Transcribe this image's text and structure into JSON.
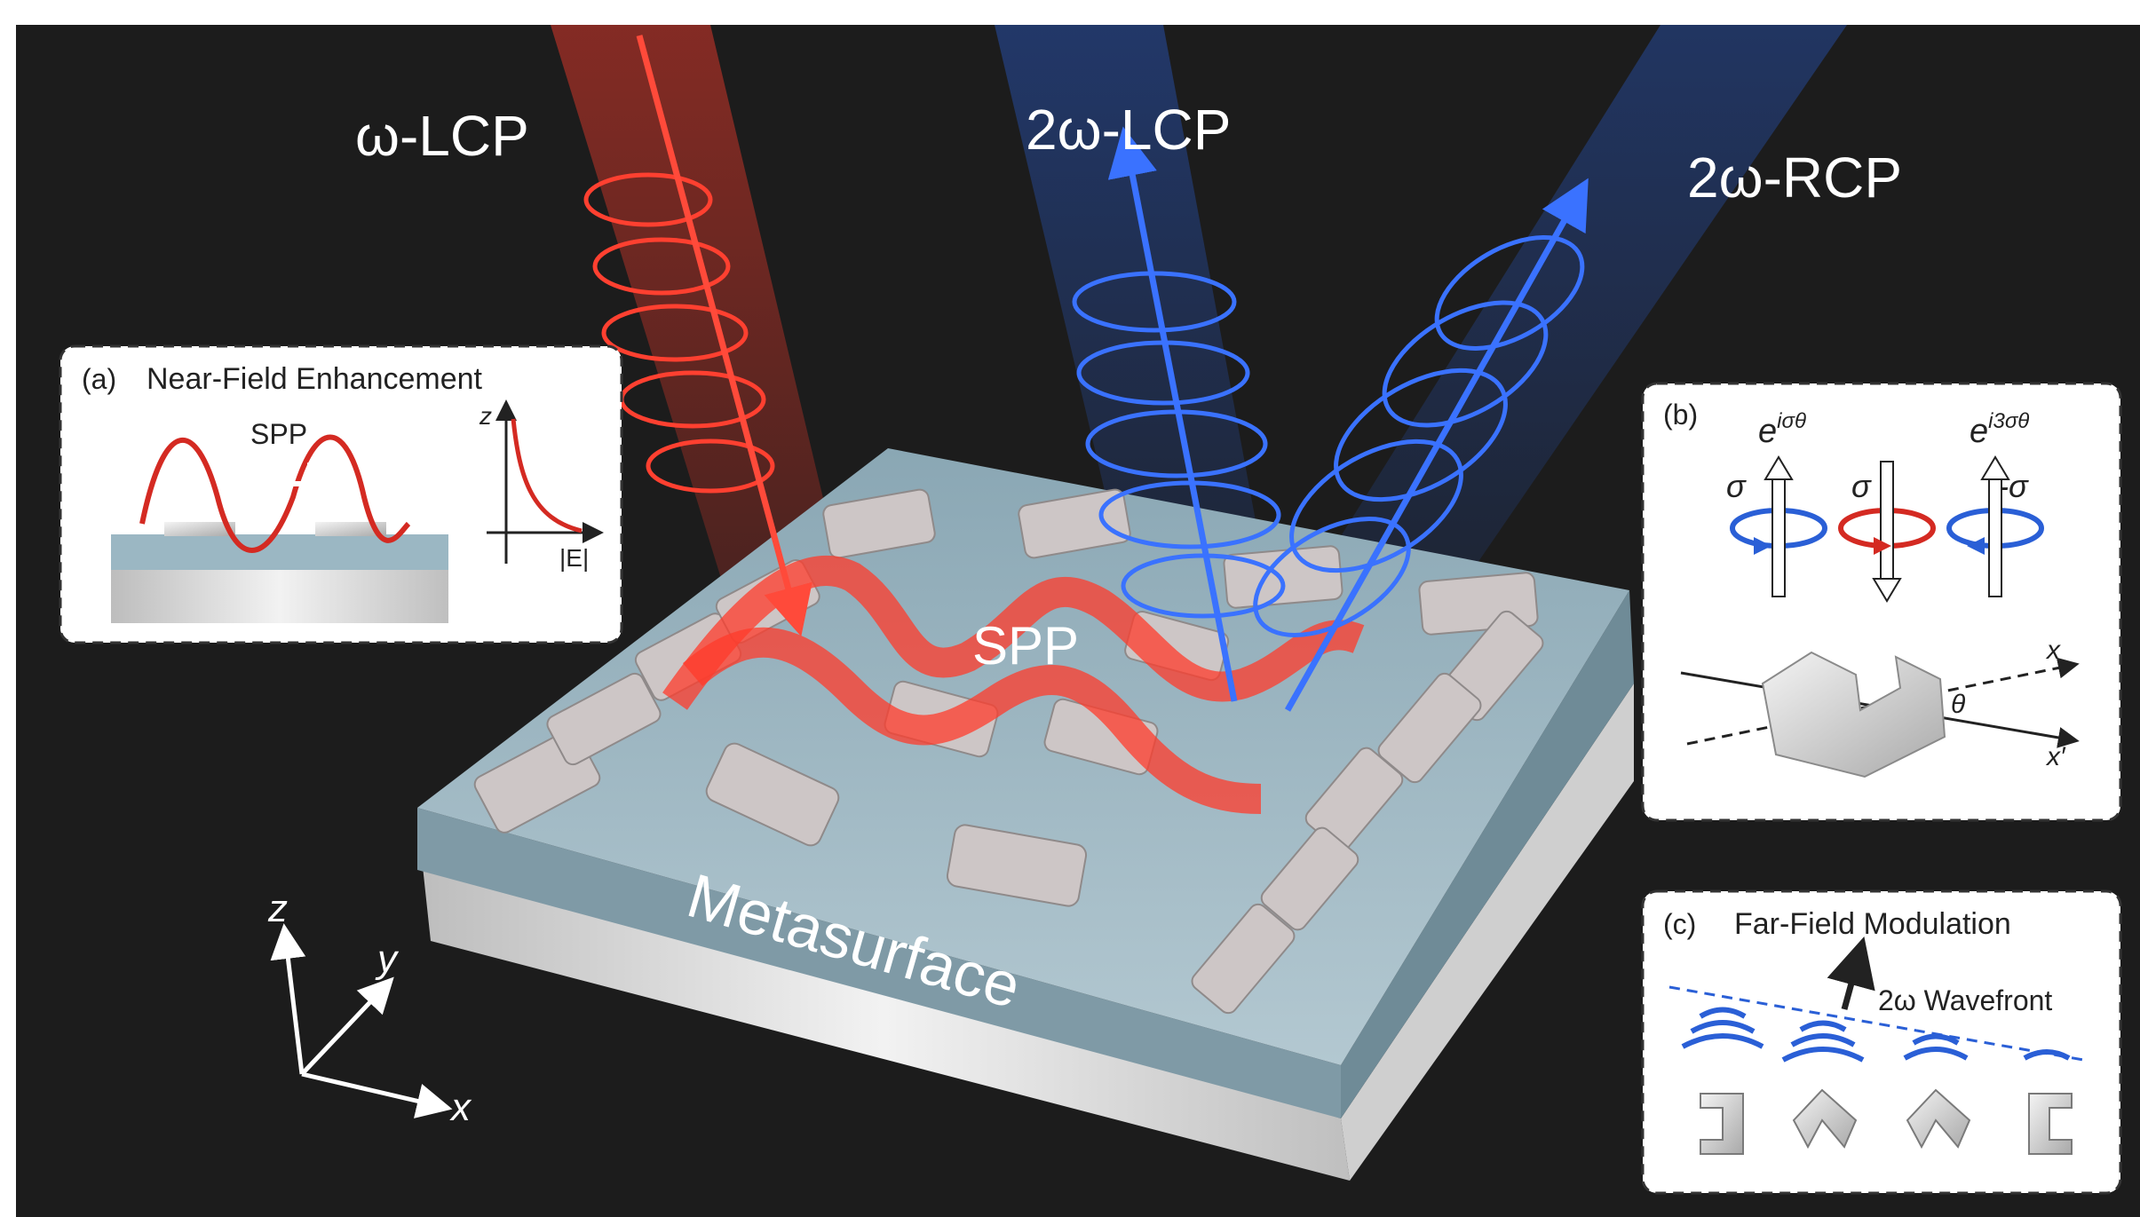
{
  "beams": {
    "incident": "ω-LCP",
    "sh_lcp": "2ω-LCP",
    "sh_rcp": "2ω-RCP"
  },
  "main": {
    "spp_label": "SPP",
    "metasurface_label": "Metasurface"
  },
  "axes": {
    "z": "z",
    "y": "y",
    "x": "x"
  },
  "panel_a": {
    "tag": "(a)",
    "title": "Near-Field Enhancement",
    "spp": "SPP",
    "z_axis": "z",
    "e_axis": "|E|"
  },
  "panel_b": {
    "tag": "(b)",
    "phase1_base": "e",
    "phase1_exp": "iσθ",
    "phase2_base": "e",
    "phase2_exp": "i3σθ",
    "sigma1": "σ",
    "sigma2": "σ",
    "sigma3": "-σ",
    "x": "x",
    "xprime": "x′",
    "theta": "θ"
  },
  "panel_c": {
    "tag": "(c)",
    "title": "Far-Field Modulation",
    "wavefront": "2ω Wavefront"
  },
  "colors": {
    "background": "#1c1c1c",
    "red_beam": "#e8392b",
    "blue_beam": "#2a5fd6",
    "slab_top": "#9bb7c3",
    "substrate": "#d8d8d8"
  }
}
